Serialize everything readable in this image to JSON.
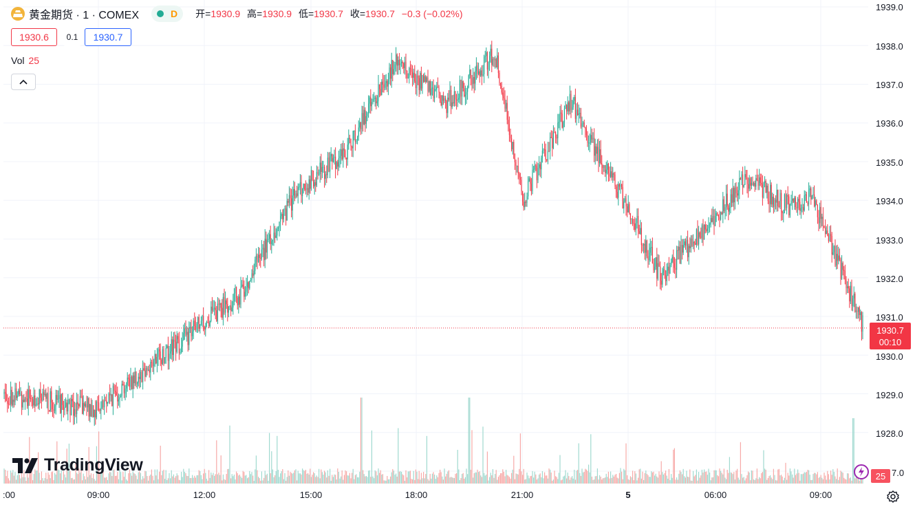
{
  "header": {
    "symbol_title": "黄金期货 · 1 · COMEX",
    "interval_badge": "D",
    "ohlc": {
      "open_label": "开=",
      "open_value": "1930.9",
      "high_label": "高=",
      "high_value": "1930.9",
      "low_label": "低=",
      "low_value": "1930.7",
      "close_label": "收=",
      "close_value": "1930.7",
      "change": "−0.3 (−0.02%)"
    }
  },
  "trade": {
    "bid": "1930.6",
    "spread": "0.1",
    "ask": "1930.7"
  },
  "volume_legend": {
    "label": "Vol",
    "value": "25"
  },
  "price_scale": {
    "ticks": [
      "1939.0",
      "1938.0",
      "1937.0",
      "1936.0",
      "1935.0",
      "1934.0",
      "1933.0",
      "1932.0",
      "1931.0",
      "1930.0",
      "1929.0",
      "1928.0",
      "7.0"
    ],
    "last_price": "1930.7",
    "countdown": "00:10",
    "volume_last": "25"
  },
  "time_scale": {
    "ticks": [
      ":00",
      "09:00",
      "12:00",
      "15:00",
      "18:00",
      "21:00",
      "5",
      "06:00",
      "09:00"
    ]
  },
  "branding": {
    "logo_text": "TradingView"
  },
  "colors": {
    "up": "#22ab94",
    "down": "#f23645",
    "up_volume": "#9fd9cf",
    "down_volume": "#f7a9a7",
    "last_line": "#f23645",
    "grid": "#f0f3fa",
    "logo_orange": "#f2b43b",
    "status_green": "#22ab94",
    "interval_orange": "#ff9800"
  },
  "icons": [
    "gold-symbol-icon",
    "market-status-dot-icon",
    "chevron-up-icon",
    "lightning-icon",
    "gear-icon",
    "tradingview-logo-icon"
  ],
  "chart_data": {
    "type": "candlestick",
    "title": "黄金期货 · 1 · COMEX",
    "interval": "1 minute",
    "ylim": [
      1927.0,
      1939.0
    ],
    "x": [
      "06:00",
      "09:00",
      "10:00",
      "12:00",
      "13:30",
      "15:00",
      "16:30",
      "18:00",
      "19:30",
      "20:00",
      "21:00",
      "22:30",
      "23:30",
      "01:00",
      "02:30",
      "04:00",
      "06:00",
      "07:00",
      "08:30",
      "09:00",
      "10:00"
    ],
    "close": [
      1929.0,
      1928.6,
      1929.2,
      1930.6,
      1931.6,
      1934.2,
      1935.2,
      1937.6,
      1936.5,
      1937.8,
      1934.0,
      1936.6,
      1934.8,
      1933.6,
      1932.0,
      1932.8,
      1934.0,
      1934.6,
      1933.8,
      1934.1,
      1930.7
    ],
    "last_price": 1930.7,
    "last_change": -0.3,
    "last_change_pct": -0.02,
    "volume_last": 25,
    "grid": true
  }
}
